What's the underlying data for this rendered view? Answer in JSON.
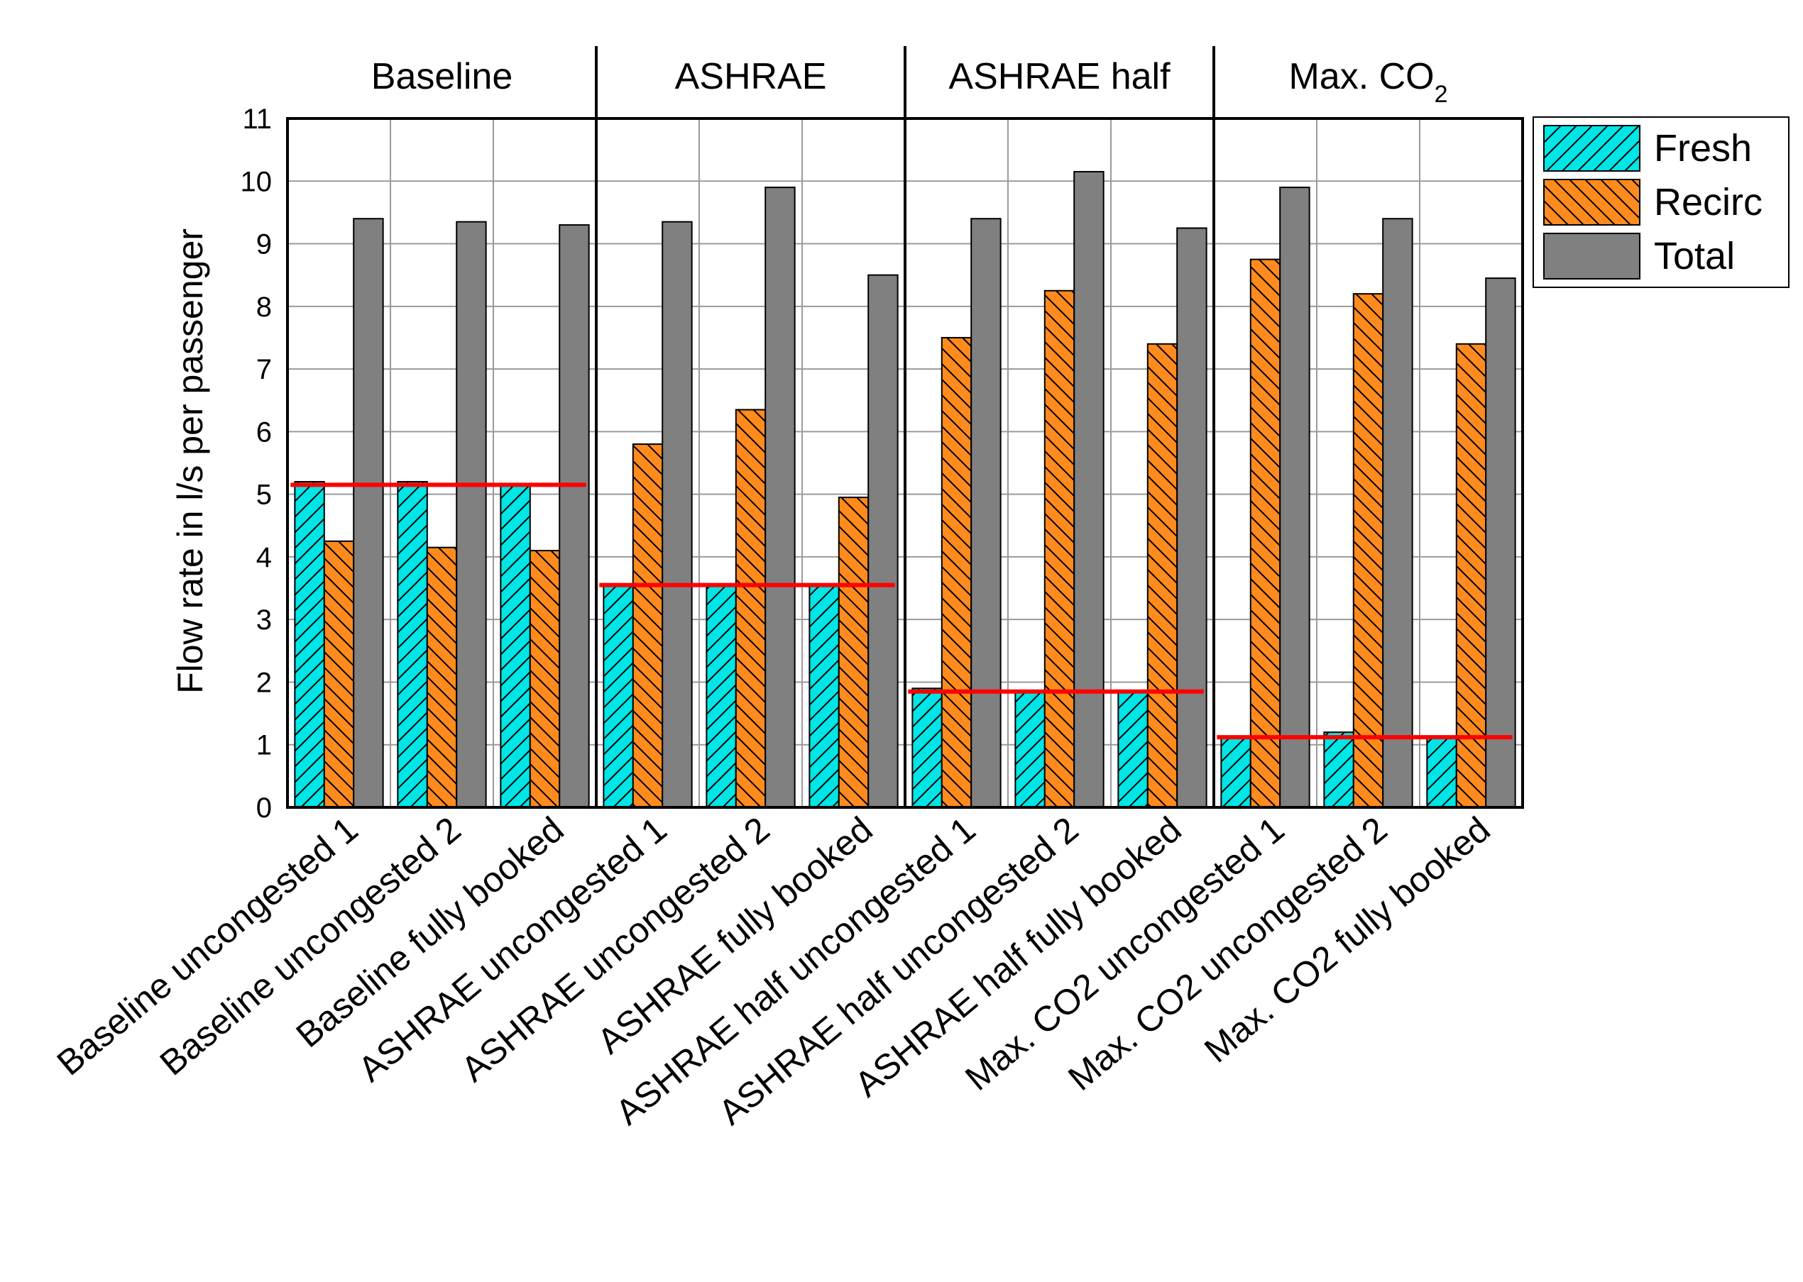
{
  "chart_data": {
    "type": "bar",
    "ylabel": "Flow rate in l/s per passenger",
    "xlabel": "",
    "ylim": [
      0,
      11
    ],
    "yticks": [
      0,
      1,
      2,
      3,
      4,
      5,
      6,
      7,
      8,
      9,
      10,
      11
    ],
    "grid": true,
    "legend_position": "right",
    "groups": [
      {
        "label": "Baseline",
        "sub": "",
        "categories": [
          0,
          1,
          2
        ],
        "reference_line": 5.15
      },
      {
        "label": "ASHRAE",
        "sub": "",
        "categories": [
          3,
          4,
          5
        ],
        "reference_line": 3.55
      },
      {
        "label": "ASHRAE half",
        "sub": "",
        "categories": [
          6,
          7,
          8
        ],
        "reference_line": 1.85
      },
      {
        "label": "Max. CO",
        "sub": "2",
        "categories": [
          9,
          10,
          11
        ],
        "reference_line": 1.12
      }
    ],
    "categories": [
      "Baseline uncongested 1",
      "Baseline uncongested 2",
      "Baseline fully booked",
      "ASHRAE uncongested 1",
      "ASHRAE uncongested 2",
      "ASHRAE fully booked",
      "ASHRAE half uncongested 1",
      "ASHRAE half uncongested 2",
      "ASHRAE half fully booked",
      "Max. CO2 uncongested 1",
      "Max. CO2 uncongested 2",
      "Max. CO2 fully booked"
    ],
    "series": [
      {
        "name": "Fresh",
        "color": "#00e5e5",
        "hatch": "diagonal-up",
        "values": [
          5.2,
          5.2,
          5.15,
          3.55,
          3.55,
          3.55,
          1.9,
          1.85,
          1.85,
          1.1,
          1.2,
          1.1
        ]
      },
      {
        "name": "Recirc",
        "color": "#ff8a1e",
        "hatch": "diagonal-down",
        "values": [
          4.25,
          4.15,
          4.1,
          5.8,
          6.35,
          4.95,
          7.5,
          8.25,
          7.4,
          8.75,
          8.2,
          7.4
        ]
      },
      {
        "name": "Total",
        "color": "#808080",
        "hatch": "none",
        "values": [
          9.4,
          9.35,
          9.3,
          9.35,
          9.9,
          8.5,
          9.4,
          10.15,
          9.25,
          9.9,
          9.4,
          8.45
        ]
      }
    ],
    "reference_line_color": "#ff0000"
  }
}
